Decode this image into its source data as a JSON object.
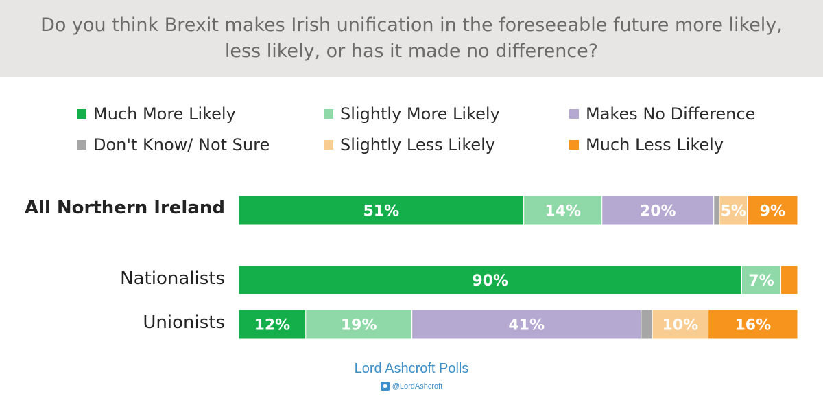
{
  "title": {
    "line1": "Do you think Brexit makes Irish unification in the foreseeable future more likely,",
    "line2": "less likely, or has it made no difference?"
  },
  "chart_data": {
    "type": "bar",
    "orientation": "horizontal",
    "stacked": true,
    "categories": [
      "All Northern Ireland",
      "Nationalists",
      "Unionists"
    ],
    "series": [
      {
        "name": "Much More Likely",
        "color": "#14ae4b",
        "values": [
          51,
          90,
          12
        ],
        "labels": [
          "51%",
          "90%",
          "12%"
        ]
      },
      {
        "name": "Slightly More Likely",
        "color": "#8fd8a8",
        "values": [
          14,
          7,
          19
        ],
        "labels": [
          "14%",
          "7%",
          "19%"
        ]
      },
      {
        "name": "Makes No Difference",
        "color": "#b6a9d1",
        "values": [
          20,
          0,
          41
        ],
        "labels": [
          "20%",
          "",
          "41%"
        ]
      },
      {
        "name": "Don't Know/ Not Sure",
        "color": "#a6a6a6",
        "values": [
          1,
          0,
          2
        ],
        "labels": [
          "",
          "",
          ""
        ]
      },
      {
        "name": "Slightly Less Likely",
        "color": "#f9cd92",
        "values": [
          5,
          0,
          10
        ],
        "labels": [
          "5%",
          "",
          "10%"
        ]
      },
      {
        "name": "Much Less Likely",
        "color": "#f7941d",
        "values": [
          9,
          3,
          16
        ],
        "labels": [
          "9%",
          "",
          "16%"
        ]
      }
    ],
    "legend_position": "top",
    "grid": false
  },
  "footer": {
    "brand": "Lord Ashcroft Polls",
    "handle": "@LordAshcroft",
    "handle_icon": "twitter-icon"
  }
}
